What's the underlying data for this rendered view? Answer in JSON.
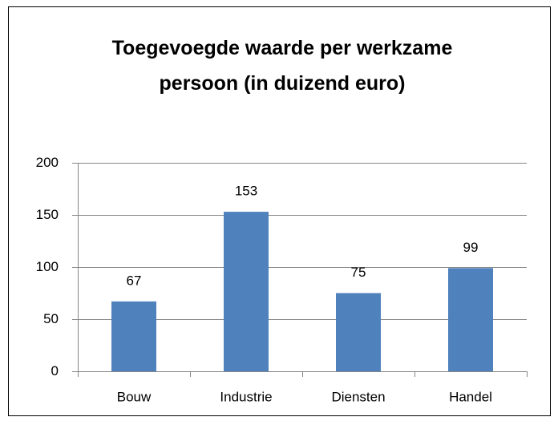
{
  "chart_data": {
    "type": "bar",
    "title": "Toegevoegde waarde per werkzame persoon (in duizend euro)",
    "categories": [
      "Bouw",
      "Industrie",
      "Diensten",
      "Handel"
    ],
    "values": [
      67,
      153,
      75,
      99
    ],
    "color": "#4f81bd",
    "ylim": [
      0,
      200
    ],
    "yticks": [
      0,
      50,
      100,
      150,
      200
    ],
    "grid": true
  }
}
